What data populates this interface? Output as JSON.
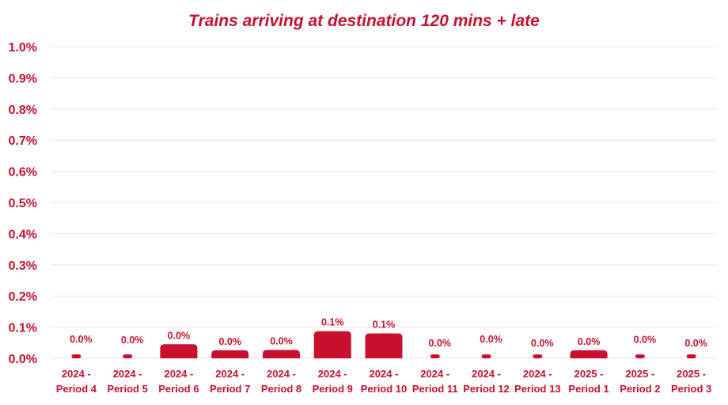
{
  "chart_data": {
    "type": "bar",
    "title": "Trains arriving at destination 120 mins + late",
    "xlabel": "",
    "ylabel": "",
    "ylim": [
      0,
      0.01
    ],
    "y_ticks": [
      "1.0%",
      "0.9%",
      "0.8%",
      "0.7%",
      "0.6%",
      "0.5%",
      "0.4%",
      "0.3%",
      "0.2%",
      "0.1%",
      "0.0%"
    ],
    "grid": true,
    "categories": [
      [
        "2024 -",
        "Period 4"
      ],
      [
        "2024 -",
        "Period 5"
      ],
      [
        "2024 -",
        "Period 6"
      ],
      [
        "2024 -",
        "Period 7"
      ],
      [
        "2024 -",
        "Period 8"
      ],
      [
        "2024 -",
        "Period 9"
      ],
      [
        "2024 -",
        "Period 10"
      ],
      [
        "2024 -",
        "Period 11"
      ],
      [
        "2024 -",
        "Period 12"
      ],
      [
        "2024 -",
        "Period 13"
      ],
      [
        "2025 -",
        "Period 1"
      ],
      [
        "2025 -",
        "Period 2"
      ],
      [
        "2025 -",
        "Period 3"
      ]
    ],
    "values": [
      0.00025,
      0.00023,
      0.00045,
      0.00026,
      0.00027,
      0.00087,
      0.0008,
      0.00012,
      0.00025,
      0.00012,
      0.00026,
      0.00024,
      0.00012
    ],
    "data_labels": [
      "0.0%",
      "0.0%",
      "0.0%",
      "0.0%",
      "0.0%",
      "0.1%",
      "0.1%",
      "0.0%",
      "0.0%",
      "0.0%",
      "0.0%",
      "0.0%",
      "0.0%"
    ],
    "colors": {
      "bar": "#c8102e",
      "text": "#c8102e",
      "grid": "#f6dde2"
    }
  }
}
